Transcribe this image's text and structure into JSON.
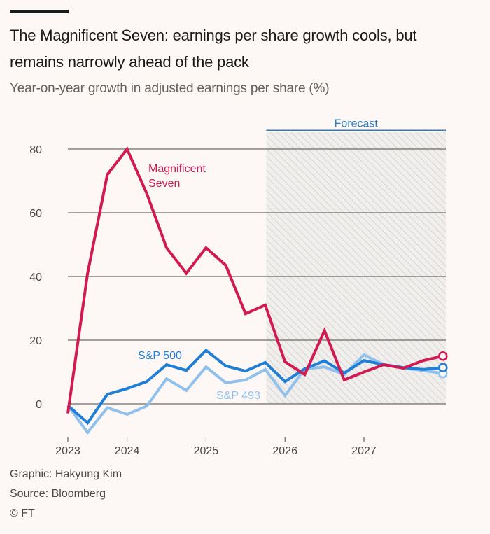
{
  "header": {
    "title": "The Magnificent Seven: earnings per share growth cools, but remains narrowly ahead of the pack",
    "subtitle": "Year-on-year growth in adjusted earnings per share (%)"
  },
  "footer": {
    "graphic": "Graphic: Hakyung Kim",
    "source": "Source: Bloomberg",
    "copyright": "© FT"
  },
  "colors": {
    "mag7": "#d21a52",
    "sp500": "#1f7fd6",
    "sp493": "#8fc1ec",
    "grid": "#6e6a67",
    "forecast": "#2b7bc5"
  },
  "chart_data": {
    "type": "line",
    "title": "The Magnificent Seven: earnings per share growth cools, but remains narrowly ahead of the pack",
    "subtitle": "Year-on-year growth in adjusted earnings per share (%)",
    "xlabel": "",
    "ylabel": "Year-on-year growth in adjusted EPS (%)",
    "ylim": [
      -10,
      85
    ],
    "yticks": [
      0,
      20,
      40,
      60,
      80
    ],
    "grid": true,
    "x_labels": [
      "2023",
      "",
      "",
      "2024",
      "",
      "",
      "",
      "2025",
      "",
      "",
      "",
      "2026",
      "",
      "",
      "",
      "2027",
      "",
      "",
      "",
      ""
    ],
    "xticks": [
      {
        "index": 0,
        "label": "2023"
      },
      {
        "index": 3,
        "label": "2024"
      },
      {
        "index": 7,
        "label": "2025"
      },
      {
        "index": 11,
        "label": "2026"
      },
      {
        "index": 15,
        "label": "2027"
      }
    ],
    "forecast": {
      "label": "Forecast",
      "start_index": 10.05,
      "end_index": 19
    },
    "series": [
      {
        "name": "Magnificent Seven",
        "label": "Magnificent\nSeven",
        "color_key": "mag7",
        "values": [
          -3,
          41,
          72,
          80,
          66,
          49,
          41,
          49,
          43.5,
          28.3,
          31,
          13.2,
          9.2,
          23,
          7.5,
          10,
          12.3,
          11.2,
          13.6,
          15
        ]
      },
      {
        "name": "S&P 500",
        "label": "S&P 500",
        "color_key": "sp500",
        "values": [
          -0.5,
          -6,
          3,
          4.8,
          7,
          12.3,
          10.5,
          16.8,
          11.9,
          10.3,
          13,
          7,
          11,
          13.5,
          9.7,
          13.6,
          12.3,
          11.4,
          10.8,
          11.4
        ]
      },
      {
        "name": "S&P 493",
        "label": "S&P 493",
        "color_key": "sp493",
        "values": [
          -0.5,
          -9,
          -1.2,
          -3.3,
          -0.7,
          7.9,
          4.2,
          11.6,
          6.6,
          7.5,
          10.8,
          2.6,
          11,
          11.6,
          9.2,
          15.4,
          12.3,
          11.2,
          10.5,
          9.5
        ]
      }
    ],
    "legend": "inline-labels"
  }
}
